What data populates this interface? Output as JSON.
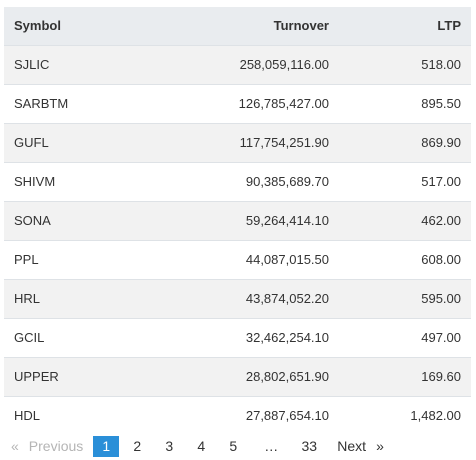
{
  "table": {
    "headers": {
      "symbol": "Symbol",
      "turnover": "Turnover",
      "ltp": "LTP"
    },
    "rows": [
      {
        "symbol": "SJLIC",
        "turnover": "258,059,116.00",
        "ltp": "518.00"
      },
      {
        "symbol": "SARBTM",
        "turnover": "126,785,427.00",
        "ltp": "895.50"
      },
      {
        "symbol": "GUFL",
        "turnover": "117,754,251.90",
        "ltp": "869.90"
      },
      {
        "symbol": "SHIVM",
        "turnover": "90,385,689.70",
        "ltp": "517.00"
      },
      {
        "symbol": "SONA",
        "turnover": "59,264,414.10",
        "ltp": "462.00"
      },
      {
        "symbol": "PPL",
        "turnover": "44,087,015.50",
        "ltp": "608.00"
      },
      {
        "symbol": "HRL",
        "turnover": "43,874,052.20",
        "ltp": "595.00"
      },
      {
        "symbol": "GCIL",
        "turnover": "32,462,254.10",
        "ltp": "497.00"
      },
      {
        "symbol": "UPPER",
        "turnover": "28,802,651.90",
        "ltp": "169.60"
      },
      {
        "symbol": "HDL",
        "turnover": "27,887,654.10",
        "ltp": "1,482.00"
      }
    ]
  },
  "pagination": {
    "first_arrow": "«",
    "previous_label": "Previous",
    "pages": [
      "1",
      "2",
      "3",
      "4",
      "5"
    ],
    "ellipsis": "…",
    "last_page": "33",
    "next_label": "Next",
    "last_arrow": "»",
    "current_page": "1",
    "active_color": "#2a8fd8"
  }
}
